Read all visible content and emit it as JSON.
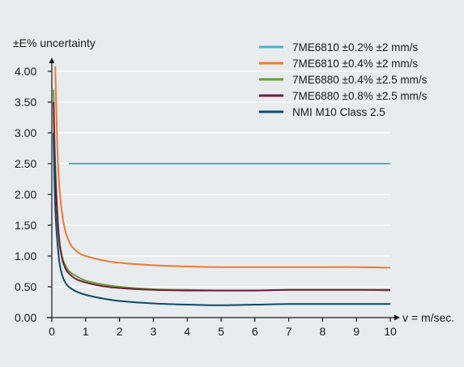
{
  "chart_data": {
    "type": "line",
    "ylabel": "±E% uncertainty",
    "xlabel": "v = m/sec.",
    "xlim": [
      0,
      10
    ],
    "ylim": [
      0,
      4
    ],
    "xticks": [
      "0",
      "1",
      "2",
      "3",
      "4",
      "5",
      "6",
      "7",
      "8",
      "9",
      "10"
    ],
    "yticks": [
      "0.00",
      "0.50",
      "1.00",
      "1.50",
      "2.00",
      "2.50",
      "3.00",
      "3.50",
      "4.00"
    ],
    "legend_position": "top-right",
    "series": [
      {
        "name": "7ME6810 ±0.2% ±2 mm/s",
        "color": "#4eb3c4",
        "points": [
          [
            0.5,
            2.5
          ],
          [
            1,
            2.5
          ],
          [
            2,
            2.5
          ],
          [
            3,
            2.5
          ],
          [
            4,
            2.5
          ],
          [
            5,
            2.5
          ],
          [
            6,
            2.5
          ],
          [
            7,
            2.5
          ],
          [
            8,
            2.5
          ],
          [
            9,
            2.5
          ],
          [
            10,
            2.5
          ]
        ]
      },
      {
        "name": "7ME6810 ±0.4% ±2 mm/s",
        "color": "#ee7b2f",
        "points": [
          [
            0.1,
            4.08
          ],
          [
            0.15,
            3.0
          ],
          [
            0.2,
            2.3
          ],
          [
            0.3,
            1.7
          ],
          [
            0.4,
            1.4
          ],
          [
            0.5,
            1.25
          ],
          [
            0.6,
            1.15
          ],
          [
            0.8,
            1.05
          ],
          [
            1,
            1.0
          ],
          [
            1.5,
            0.93
          ],
          [
            2,
            0.89
          ],
          [
            3,
            0.85
          ],
          [
            4,
            0.83
          ],
          [
            5,
            0.82
          ],
          [
            6,
            0.82
          ],
          [
            7,
            0.82
          ],
          [
            8,
            0.82
          ],
          [
            9,
            0.82
          ],
          [
            10,
            0.81
          ]
        ]
      },
      {
        "name": "7ME6880 ±0.4% ±2.5 mm/s",
        "color": "#6e9a34",
        "points": [
          [
            0.05,
            3.7
          ],
          [
            0.1,
            2.5
          ],
          [
            0.2,
            1.4
          ],
          [
            0.3,
            1.0
          ],
          [
            0.4,
            0.85
          ],
          [
            0.5,
            0.76
          ],
          [
            0.7,
            0.68
          ],
          [
            1,
            0.6
          ],
          [
            1.5,
            0.54
          ],
          [
            2,
            0.5
          ],
          [
            3,
            0.46
          ],
          [
            4,
            0.45
          ],
          [
            5,
            0.44
          ],
          [
            6,
            0.44
          ],
          [
            7,
            0.45
          ],
          [
            8,
            0.45
          ],
          [
            9,
            0.45
          ],
          [
            10,
            0.44
          ]
        ]
      },
      {
        "name": "7ME6880 ±0.8% ±2.5 mm/s",
        "color": "#701d3c",
        "points": [
          [
            0.05,
            3.5
          ],
          [
            0.1,
            2.4
          ],
          [
            0.2,
            1.35
          ],
          [
            0.3,
            0.97
          ],
          [
            0.4,
            0.8
          ],
          [
            0.5,
            0.72
          ],
          [
            0.7,
            0.63
          ],
          [
            1,
            0.57
          ],
          [
            1.5,
            0.51
          ],
          [
            2,
            0.48
          ],
          [
            3,
            0.45
          ],
          [
            4,
            0.44
          ],
          [
            5,
            0.44
          ],
          [
            6,
            0.44
          ],
          [
            7,
            0.45
          ],
          [
            8,
            0.45
          ],
          [
            9,
            0.45
          ],
          [
            10,
            0.45
          ]
        ]
      },
      {
        "name": "NMI M10 Class 2.5",
        "color": "#0d4a6b",
        "points": [
          [
            0.05,
            3.0
          ],
          [
            0.1,
            1.8
          ],
          [
            0.2,
            1.0
          ],
          [
            0.3,
            0.7
          ],
          [
            0.4,
            0.57
          ],
          [
            0.5,
            0.5
          ],
          [
            0.7,
            0.43
          ],
          [
            1,
            0.37
          ],
          [
            1.5,
            0.31
          ],
          [
            2,
            0.27
          ],
          [
            3,
            0.23
          ],
          [
            4,
            0.21
          ],
          [
            5,
            0.2
          ],
          [
            6,
            0.21
          ],
          [
            7,
            0.22
          ],
          [
            8,
            0.22
          ],
          [
            9,
            0.22
          ],
          [
            10,
            0.22
          ]
        ]
      }
    ]
  }
}
